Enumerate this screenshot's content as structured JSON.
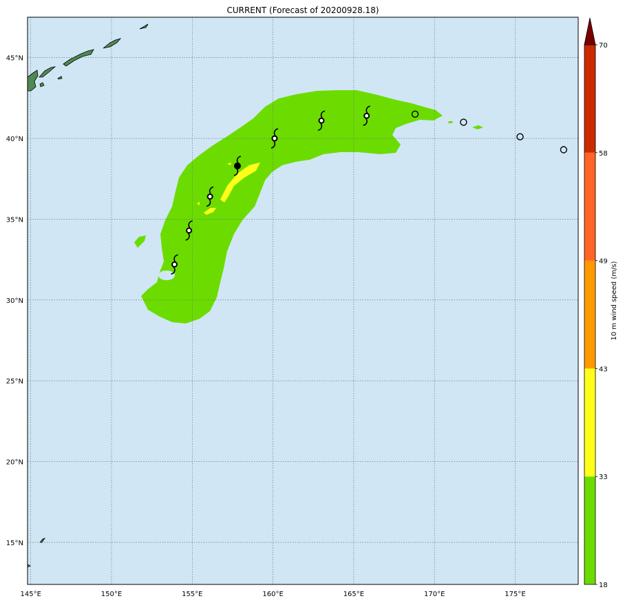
{
  "title": "CURRENT (Forecast of 20200928.18)",
  "map": {
    "ocean_color": "#d0e6f5",
    "land_color": "#4f8a52",
    "gridline_color": "#556677",
    "lon_ticks": [
      "145°E",
      "150°E",
      "155°E",
      "160°E",
      "165°E",
      "170°E",
      "175°E"
    ],
    "lat_ticks": [
      "45°N",
      "40°N",
      "35°N",
      "30°N",
      "25°N",
      "20°N",
      "15°N"
    ],
    "extent": {
      "lon": [
        144.8,
        178.9
      ],
      "lat": [
        12.4,
        47.5
      ]
    }
  },
  "colorbar": {
    "label": "10 m wind speed (m/s)",
    "levels": [
      "18",
      "33",
      "43",
      "49",
      "58",
      "70"
    ],
    "colors": [
      "#6cdc00",
      "#ffff1a",
      "#ff9900",
      "#ff6428",
      "#cc2a00",
      "#7a0000"
    ],
    "extend_color": "#7a0000"
  },
  "track": {
    "tropical_storm_icons": [
      {
        "lon": 153.9,
        "lat": 32.2
      },
      {
        "lon": 154.8,
        "lat": 34.3
      },
      {
        "lon": 156.1,
        "lat": 36.4
      },
      {
        "lon": 160.1,
        "lat": 40.0
      },
      {
        "lon": 163.0,
        "lat": 41.1
      },
      {
        "lon": 165.8,
        "lat": 41.4
      }
    ],
    "current_position": {
      "lon": 157.8,
      "lat": 38.3
    },
    "extratropical_points": [
      {
        "lon": 168.8,
        "lat": 41.5
      },
      {
        "lon": 171.8,
        "lat": 41.0
      },
      {
        "lon": 175.3,
        "lat": 40.1
      },
      {
        "lon": 178.0,
        "lat": 39.3
      }
    ]
  }
}
